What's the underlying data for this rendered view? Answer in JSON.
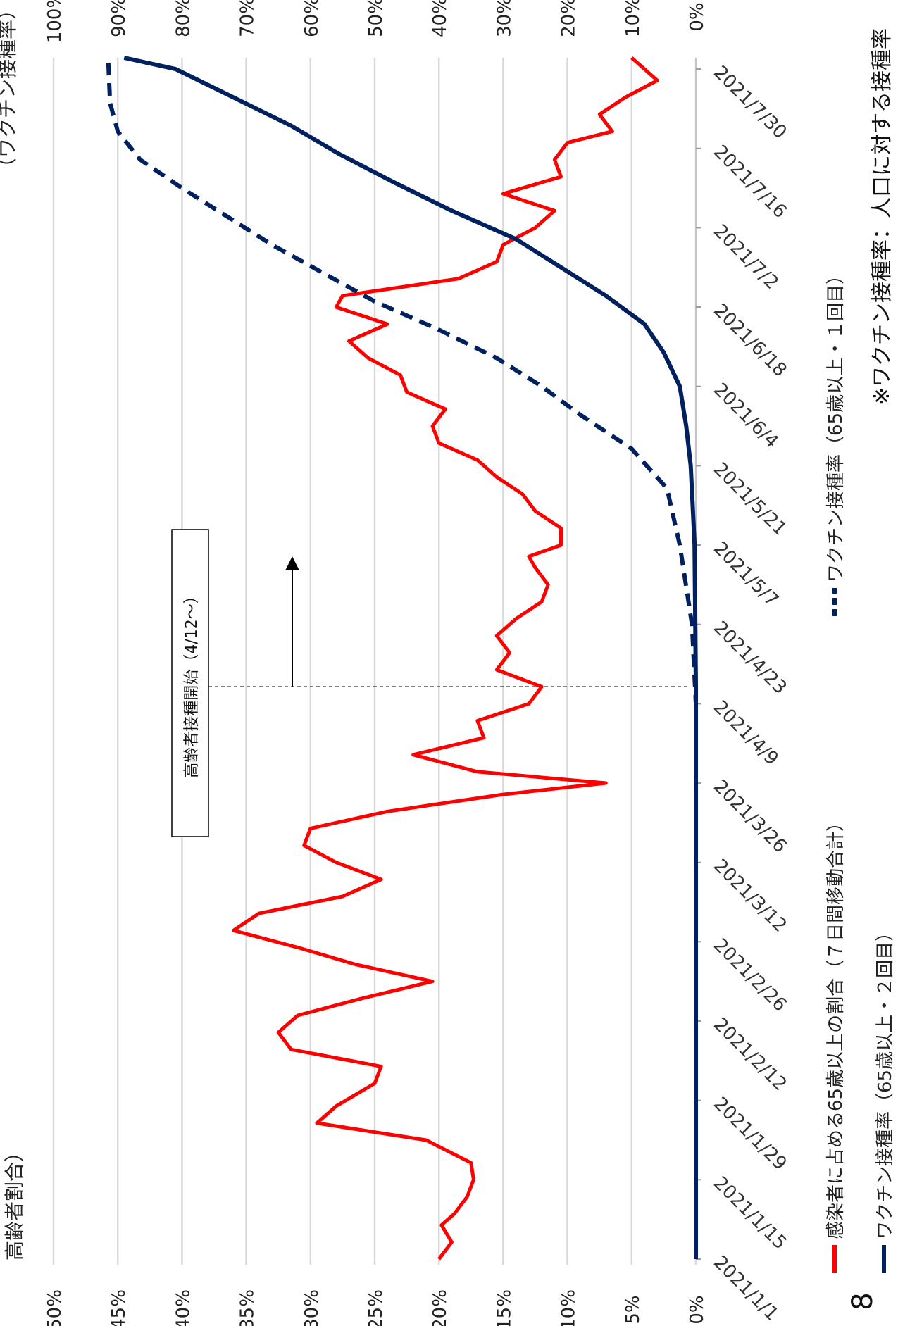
{
  "page_number": "8",
  "chart_data": {
    "type": "line",
    "orientation": "rotated-90-clockwise",
    "left_axis": {
      "title": "高齢者割合）",
      "ticks": [
        "50%",
        "45%",
        "40%",
        "35%",
        "30%",
        "25%",
        "20%",
        "15%",
        "10%",
        "5%",
        "0%"
      ],
      "range": [
        0,
        50
      ],
      "unit": "%"
    },
    "right_axis": {
      "title": "（ワクチン接種率）",
      "ticks": [
        "100%",
        "90%",
        "80%",
        "70%",
        "60%",
        "50%",
        "40%",
        "30%",
        "20%",
        "10%",
        "0%"
      ],
      "range": [
        0,
        100
      ],
      "unit": "%"
    },
    "x_axis": {
      "ticks": [
        "2021/1/1",
        "2021/1/15",
        "2021/1/29",
        "2021/2/12",
        "2021/2/26",
        "2021/3/12",
        "2021/3/26",
        "2021/4/9",
        "2021/4/23",
        "2021/5/7",
        "2021/5/21",
        "2021/6/4",
        "2021/6/18",
        "2021/7/2",
        "2021/7/16",
        "2021/7/30"
      ],
      "start": "2021-01-01",
      "end": "2021-08-01"
    },
    "grid": true,
    "series": [
      {
        "name": "感染者に占める65歳以上の割合（７日間移動合計）",
        "axis": "left",
        "color": "#ff0000",
        "style": "solid",
        "points": [
          [
            "2021-01-01",
            20.0
          ],
          [
            "2021-01-04",
            19.0
          ],
          [
            "2021-01-07",
            19.8
          ],
          [
            "2021-01-09",
            18.8
          ],
          [
            "2021-01-12",
            17.8
          ],
          [
            "2021-01-15",
            17.3
          ],
          [
            "2021-01-18",
            17.5
          ],
          [
            "2021-01-22",
            21.0
          ],
          [
            "2021-01-25",
            29.5
          ],
          [
            "2021-01-28",
            28.0
          ],
          [
            "2021-02-01",
            25.0
          ],
          [
            "2021-02-04",
            24.5
          ],
          [
            "2021-02-07",
            31.5
          ],
          [
            "2021-02-10",
            32.5
          ],
          [
            "2021-02-13",
            31.0
          ],
          [
            "2021-02-16",
            26.0
          ],
          [
            "2021-02-19",
            20.5
          ],
          [
            "2021-02-22",
            26.5
          ],
          [
            "2021-02-25",
            31.0
          ],
          [
            "2021-02-28",
            36.0
          ],
          [
            "2021-03-03",
            34.0
          ],
          [
            "2021-03-06",
            27.5
          ],
          [
            "2021-03-09",
            24.5
          ],
          [
            "2021-03-12",
            28.0
          ],
          [
            "2021-03-15",
            30.5
          ],
          [
            "2021-03-18",
            30.0
          ],
          [
            "2021-03-21",
            24.0
          ],
          [
            "2021-03-24",
            15.0
          ],
          [
            "2021-03-26",
            7.0
          ],
          [
            "2021-03-28",
            17.0
          ],
          [
            "2021-03-31",
            22.0
          ],
          [
            "2021-04-03",
            16.5
          ],
          [
            "2021-04-06",
            17.0
          ],
          [
            "2021-04-09",
            13.0
          ],
          [
            "2021-04-12",
            12.0
          ],
          [
            "2021-04-15",
            15.5
          ],
          [
            "2021-04-18",
            14.5
          ],
          [
            "2021-04-21",
            15.5
          ],
          [
            "2021-04-24",
            14.0
          ],
          [
            "2021-04-27",
            12.0
          ],
          [
            "2021-04-30",
            11.5
          ],
          [
            "2021-05-03",
            12.5
          ],
          [
            "2021-05-05",
            13.0
          ],
          [
            "2021-05-07",
            10.5
          ],
          [
            "2021-05-10",
            10.5
          ],
          [
            "2021-05-13",
            12.5
          ],
          [
            "2021-05-16",
            13.5
          ],
          [
            "2021-05-19",
            15.5
          ],
          [
            "2021-05-22",
            17.0
          ],
          [
            "2021-05-25",
            20.0
          ],
          [
            "2021-05-28",
            20.5
          ],
          [
            "2021-05-31",
            19.5
          ],
          [
            "2021-06-03",
            22.5
          ],
          [
            "2021-06-06",
            23.0
          ],
          [
            "2021-06-09",
            25.5
          ],
          [
            "2021-06-12",
            27.0
          ],
          [
            "2021-06-15",
            24.0
          ],
          [
            "2021-06-18",
            28.0
          ],
          [
            "2021-06-20",
            27.5
          ],
          [
            "2021-06-23",
            18.5
          ],
          [
            "2021-06-26",
            15.5
          ],
          [
            "2021-06-29",
            15.0
          ],
          [
            "2021-07-02",
            12.5
          ],
          [
            "2021-07-05",
            11.0
          ],
          [
            "2021-07-08",
            15.0
          ],
          [
            "2021-07-11",
            10.5
          ],
          [
            "2021-07-14",
            11.0
          ],
          [
            "2021-07-17",
            10.0
          ],
          [
            "2021-07-19",
            6.5
          ],
          [
            "2021-07-22",
            7.5
          ],
          [
            "2021-07-25",
            5.5
          ],
          [
            "2021-07-28",
            3.0
          ],
          [
            "2021-07-31",
            4.5
          ],
          [
            "2021-08-01",
            5.0
          ]
        ]
      },
      {
        "name": "ワクチン接種率（65歳以上・２回目）",
        "axis": "right",
        "color": "#002060",
        "style": "solid",
        "points": [
          [
            "2021-01-01",
            0.0
          ],
          [
            "2021-04-12",
            0.0
          ],
          [
            "2021-05-07",
            0.2
          ],
          [
            "2021-05-21",
            0.8
          ],
          [
            "2021-05-28",
            1.5
          ],
          [
            "2021-06-04",
            2.5
          ],
          [
            "2021-06-10",
            5.0
          ],
          [
            "2021-06-15",
            8.0
          ],
          [
            "2021-06-20",
            14.0
          ],
          [
            "2021-06-25",
            21.0
          ],
          [
            "2021-06-30",
            28.0
          ],
          [
            "2021-07-05",
            38.0
          ],
          [
            "2021-07-10",
            47.0
          ],
          [
            "2021-07-15",
            55.5
          ],
          [
            "2021-07-20",
            63.0
          ],
          [
            "2021-07-25",
            72.0
          ],
          [
            "2021-07-30",
            81.0
          ],
          [
            "2021-08-01",
            89.0
          ]
        ]
      },
      {
        "name": "ワクチン接種率（65歳以上・１回目）",
        "axis": "right",
        "color": "#002060",
        "style": "dashed",
        "points": [
          [
            "2021-01-01",
            0.0
          ],
          [
            "2021-04-09",
            0.0
          ],
          [
            "2021-04-23",
            0.6
          ],
          [
            "2021-05-07",
            2.5
          ],
          [
            "2021-05-17",
            4.5
          ],
          [
            "2021-05-24",
            10.0
          ],
          [
            "2021-05-30",
            18.0
          ],
          [
            "2021-06-04",
            24.0
          ],
          [
            "2021-06-09",
            31.0
          ],
          [
            "2021-06-14",
            40.0
          ],
          [
            "2021-06-19",
            50.0
          ],
          [
            "2021-06-24",
            58.0
          ],
          [
            "2021-06-29",
            66.0
          ],
          [
            "2021-07-04",
            73.0
          ],
          [
            "2021-07-09",
            80.0
          ],
          [
            "2021-07-14",
            86.5
          ],
          [
            "2021-07-19",
            90.0
          ],
          [
            "2021-07-24",
            91.2
          ],
          [
            "2021-08-01",
            91.5
          ]
        ]
      }
    ],
    "annotation": {
      "label": "高齢者接種開始（4/12〜）",
      "date": "2021-04-12"
    },
    "footnote": "※ワクチン接種率：人口に対する接種率"
  }
}
